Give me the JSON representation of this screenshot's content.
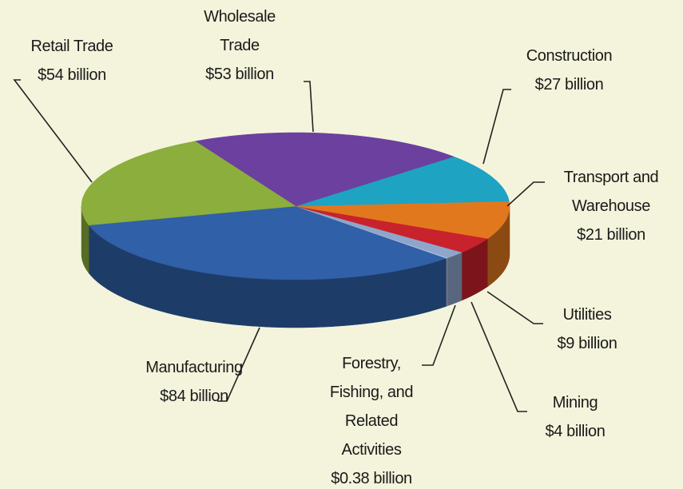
{
  "chart_data": {
    "type": "pie",
    "categories": [
      "Manufacturing",
      "Forestry, Fishing, and Related Activities",
      "Mining",
      "Utilities",
      "Transport and Warehouse",
      "Construction",
      "Wholesale Trade",
      "Retail Trade"
    ],
    "values": [
      84,
      0.38,
      4,
      9,
      21,
      27,
      53,
      54
    ],
    "value_labels": [
      "$84 billion",
      "$0.38 billion",
      "$4 billion",
      "$9 billion",
      "$21 billion",
      "$27 billion",
      "$53 billion",
      "$54 billion"
    ],
    "colors": [
      "#2f60a8",
      "#b4c0d8",
      "#8ea6cc",
      "#c8222c",
      "#e2781e",
      "#1ea3c2",
      "#6b409e",
      "#8cae3c"
    ]
  }
}
